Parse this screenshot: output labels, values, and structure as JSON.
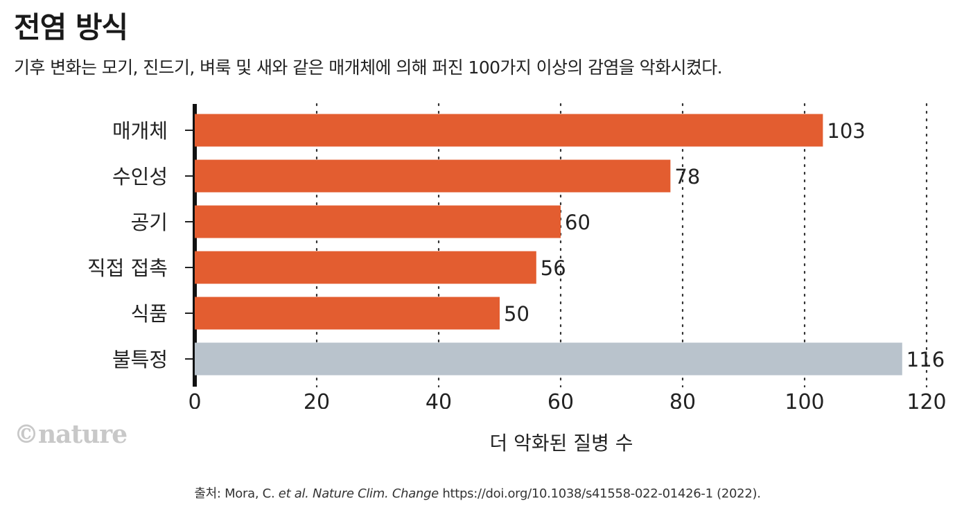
{
  "chart_data": {
    "type": "bar",
    "orientation": "horizontal",
    "title": "전염 방식",
    "subtitle": "기후 변화는 모기, 진드기, 벼룩 및 새와 같은 매개체에 의해 퍼진 100가지 이상의 감염을 악화시켰다.",
    "categories": [
      "매개체",
      "수인성",
      "공기",
      "직접 접촉",
      "식품",
      "불특정"
    ],
    "values": [
      103,
      78,
      60,
      56,
      50,
      116
    ],
    "value_labels": [
      "103",
      "78",
      "60",
      "56",
      "50",
      "116"
    ],
    "bar_colors": [
      "#e35d30",
      "#e35d30",
      "#e35d30",
      "#e35d30",
      "#e35d30",
      "#b9c3cc"
    ],
    "xlabel": "더 악화된 질병 수",
    "ylabel": "",
    "xlim": [
      0,
      120
    ],
    "xticks": [
      0,
      20,
      40,
      60,
      80,
      100,
      120
    ],
    "xtick_labels": [
      "0",
      "20",
      "40",
      "60",
      "80",
      "100",
      "120"
    ],
    "grid": "vertical dotted"
  },
  "logo": "©nature",
  "source": {
    "prefix": "출처: Mora, C. ",
    "etal": "et al.",
    "journal": "Nature Clim. Change",
    "rest": "https://doi.org/10.1038/s41558-022-01426-1 (2022)."
  }
}
